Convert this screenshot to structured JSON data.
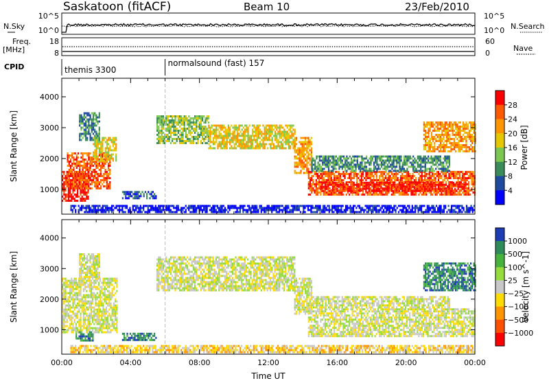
{
  "header": {
    "title": "Saskatoon (fitACF)",
    "beam": "Beam 10",
    "date": "23/Feb/2010"
  },
  "aux_panels": {
    "nsky_label": "N.Sky",
    "nsky_ticks": [
      "10^5",
      "10^0"
    ],
    "nsearch_label": "N.Search",
    "nsearch_ticks": [
      "10^5",
      "10^0"
    ],
    "freq_label": "Freq.",
    "freq_unit": "[MHz]",
    "freq_ticks": [
      "18",
      "8"
    ],
    "nave_label": "Nave",
    "nave_ticks": [
      "60",
      "0"
    ],
    "cpid_label": "CPID",
    "cpid_segments": [
      {
        "label": "themis 3300",
        "start_hour": 0,
        "end_hour": 6
      },
      {
        "label": "normalsound (fast) 157",
        "start_hour": 6,
        "end_hour": 24
      }
    ]
  },
  "chart_data": [
    {
      "type": "heatmap",
      "name": "power",
      "ylabel": "Slant Range [km]",
      "yticks": [
        1000,
        2000,
        3000,
        4000
      ],
      "ylim": [
        200,
        4600
      ],
      "xlim": [
        0,
        24
      ],
      "colorbar": {
        "label": "Power [dB]",
        "ticks": [
          "28",
          "24",
          "20",
          "16",
          "12",
          "8",
          "4"
        ],
        "colors": [
          "#ff0000",
          "#ff5a00",
          "#ff9600",
          "#e6c800",
          "#7dc850",
          "#3c8c5a",
          "#1e4ba0",
          "#0000ff"
        ]
      },
      "echo_regions": [
        {
          "start_hour": 0.0,
          "end_hour": 1.5,
          "range_min": 600,
          "range_max": 1600,
          "level": 0
        },
        {
          "start_hour": 0.3,
          "end_hour": 2.8,
          "range_min": 1000,
          "range_max": 2200,
          "level": 1
        },
        {
          "start_hour": 1.8,
          "end_hour": 3.2,
          "range_min": 1900,
          "range_max": 2700,
          "level": 3
        },
        {
          "start_hour": 1.0,
          "end_hour": 2.2,
          "range_min": 2600,
          "range_max": 3500,
          "level": 5
        },
        {
          "start_hour": 3.5,
          "end_hour": 5.5,
          "range_min": 700,
          "range_max": 950,
          "level": 6
        },
        {
          "start_hour": 5.5,
          "end_hour": 8.5,
          "range_min": 2500,
          "range_max": 3400,
          "level": 4
        },
        {
          "start_hour": 8.5,
          "end_hour": 13.5,
          "range_min": 2300,
          "range_max": 3100,
          "level": 3
        },
        {
          "start_hour": 13.5,
          "end_hour": 14.5,
          "range_min": 1500,
          "range_max": 2700,
          "level": 2
        },
        {
          "start_hour": 14.3,
          "end_hour": 24.0,
          "range_min": 800,
          "range_max": 1600,
          "level": 1
        },
        {
          "start_hour": 15.0,
          "end_hour": 23.5,
          "range_min": 950,
          "range_max": 1250,
          "level": 0
        },
        {
          "start_hour": 14.5,
          "end_hour": 22.5,
          "range_min": 1600,
          "range_max": 2100,
          "level": 5
        },
        {
          "start_hour": 21.0,
          "end_hour": 24.0,
          "range_min": 2200,
          "range_max": 3200,
          "level": 2
        },
        {
          "start_hour": 0.5,
          "end_hour": 24.0,
          "range_min": 250,
          "range_max": 500,
          "level": 7
        }
      ]
    },
    {
      "type": "heatmap",
      "name": "velocity",
      "ylabel": "Slant Range [km]",
      "xlabel": "Time UT",
      "yticks": [
        1000,
        2000,
        3000,
        4000
      ],
      "ylim": [
        200,
        4600
      ],
      "xlim": [
        0,
        24
      ],
      "xticks": [
        "00:00",
        "04:00",
        "08:00",
        "12:00",
        "16:00",
        "20:00",
        "00:00"
      ],
      "colorbar": {
        "label": "Velocity [m s^-1]",
        "ticks": [
          "1000",
          "500",
          "100",
          "25",
          "−25",
          "−100",
          "−500",
          "−1000"
        ],
        "colors": [
          "#1e3cb4",
          "#2d8c5a",
          "#46b43c",
          "#96dc3c",
          "#c8c8c8",
          "#ffdc00",
          "#ff9600",
          "#ff5000",
          "#ff0000"
        ]
      },
      "echo_regions": [
        {
          "start_hour": 0.0,
          "end_hour": 3.2,
          "range_min": 900,
          "range_max": 2700,
          "level": 4
        },
        {
          "start_hour": 1.0,
          "end_hour": 2.2,
          "range_min": 2700,
          "range_max": 3500,
          "level": 4
        },
        {
          "start_hour": 0.8,
          "end_hour": 1.8,
          "range_min": 650,
          "range_max": 950,
          "level": 1
        },
        {
          "start_hour": 3.5,
          "end_hour": 5.5,
          "range_min": 650,
          "range_max": 900,
          "level": 1
        },
        {
          "start_hour": 5.5,
          "end_hour": 13.5,
          "range_min": 2300,
          "range_max": 3400,
          "level": 4
        },
        {
          "start_hour": 13.5,
          "end_hour": 14.5,
          "range_min": 1500,
          "range_max": 2700,
          "level": 4
        },
        {
          "start_hour": 14.3,
          "end_hour": 24.0,
          "range_min": 800,
          "range_max": 1700,
          "level": 4
        },
        {
          "start_hour": 14.5,
          "end_hour": 22.5,
          "range_min": 1700,
          "range_max": 2100,
          "level": 4
        },
        {
          "start_hour": 21.0,
          "end_hour": 24.0,
          "range_min": 2300,
          "range_max": 3200,
          "level": 1
        },
        {
          "start_hour": 0.5,
          "end_hour": 24.0,
          "range_min": 250,
          "range_max": 500,
          "level": 5
        }
      ]
    }
  ]
}
